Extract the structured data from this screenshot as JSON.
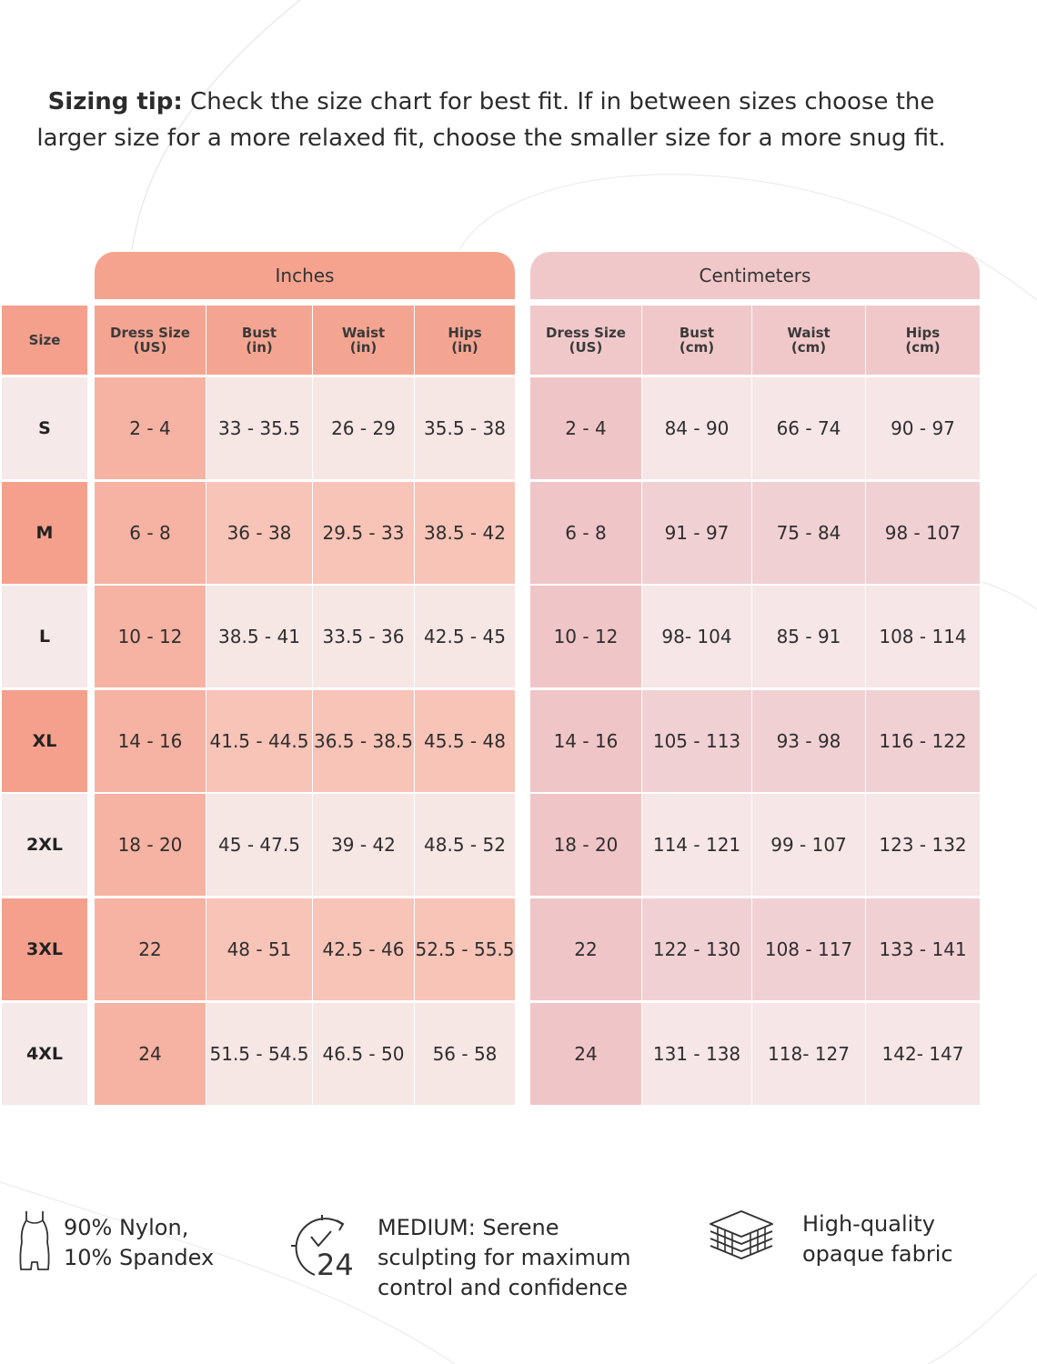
{
  "tip": {
    "label": "Sizing tip:",
    "text": " Check the size chart for best fit. If in between sizes choose the larger size for a more relaxed fit, choose the smaller size for a more snug fit."
  },
  "colors": {
    "inches_header": "#f5a38f",
    "inches_header_row": "#f4a592",
    "inches_dress_col": "#f6b2a2",
    "inches_light": "#f6e6e4",
    "inches_dark": "#f8c4b8",
    "size_light": "#f5e9e9",
    "size_dark": "#f4a08d",
    "cm_header": "#f1c8c9",
    "cm_dress_col": "#f0c5c7",
    "cm_light": "#f6e6e7",
    "cm_dark": "#f1d0d3"
  },
  "table": {
    "size_header": "Size",
    "inches_label": "Inches",
    "cm_label": "Centimeters",
    "inch_columns": [
      "Dress Size\n(US)",
      "Bust\n(in)",
      "Waist\n(in)",
      "Hips\n(in)"
    ],
    "cm_columns": [
      "Dress Size\n(US)",
      "Bust\n(cm)",
      "Waist\n(cm)",
      "Hips\n(cm)"
    ],
    "rows": [
      {
        "size": "S",
        "inches": [
          "2 - 4",
          "33 - 35.5",
          "26 - 29",
          "35.5 - 38"
        ],
        "cm": [
          "2 - 4",
          "84 - 90",
          "66 - 74",
          "90 - 97"
        ]
      },
      {
        "size": "M",
        "inches": [
          "6 - 8",
          "36 - 38",
          "29.5 - 33",
          "38.5 - 42"
        ],
        "cm": [
          "6 - 8",
          "91 - 97",
          "75 - 84",
          "98 - 107"
        ]
      },
      {
        "size": "L",
        "inches": [
          "10 - 12",
          "38.5 - 41",
          "33.5 - 36",
          "42.5 - 45"
        ],
        "cm": [
          "10 - 12",
          "98- 104",
          "85 - 91",
          "108 - 114"
        ]
      },
      {
        "size": "XL",
        "inches": [
          "14 - 16",
          "41.5 - 44.5",
          "36.5 - 38.5",
          "45.5 - 48"
        ],
        "cm": [
          "14 - 16",
          "105 - 113",
          "93 - 98",
          "116 - 122"
        ]
      },
      {
        "size": "2XL",
        "inches": [
          "18 - 20",
          "45 - 47.5",
          "39 - 42",
          "48.5 - 52"
        ],
        "cm": [
          "18 - 20",
          "114 - 121",
          "99 - 107",
          "123 - 132"
        ]
      },
      {
        "size": "3XL",
        "inches": [
          "22",
          "48 - 51",
          "42.5 - 46",
          "52.5 - 55.5"
        ],
        "cm": [
          "22",
          "122 - 130",
          "108 - 117",
          "133 - 141"
        ]
      },
      {
        "size": "4XL",
        "inches": [
          "24",
          "51.5 - 54.5",
          "46.5 - 50",
          "56 - 58"
        ],
        "cm": [
          "24",
          "131 - 138",
          "118- 127",
          "142- 147"
        ]
      }
    ]
  },
  "features": [
    {
      "icon": "bodysuit-icon",
      "text": "90% Nylon,\n10% Spandex"
    },
    {
      "icon": "clock-24-icon",
      "text": "MEDIUM: Serene\nsculpting for maximum\ncontrol and confidence"
    },
    {
      "icon": "fabric-layers-icon",
      "text": "High-quality\nopaque fabric"
    }
  ]
}
